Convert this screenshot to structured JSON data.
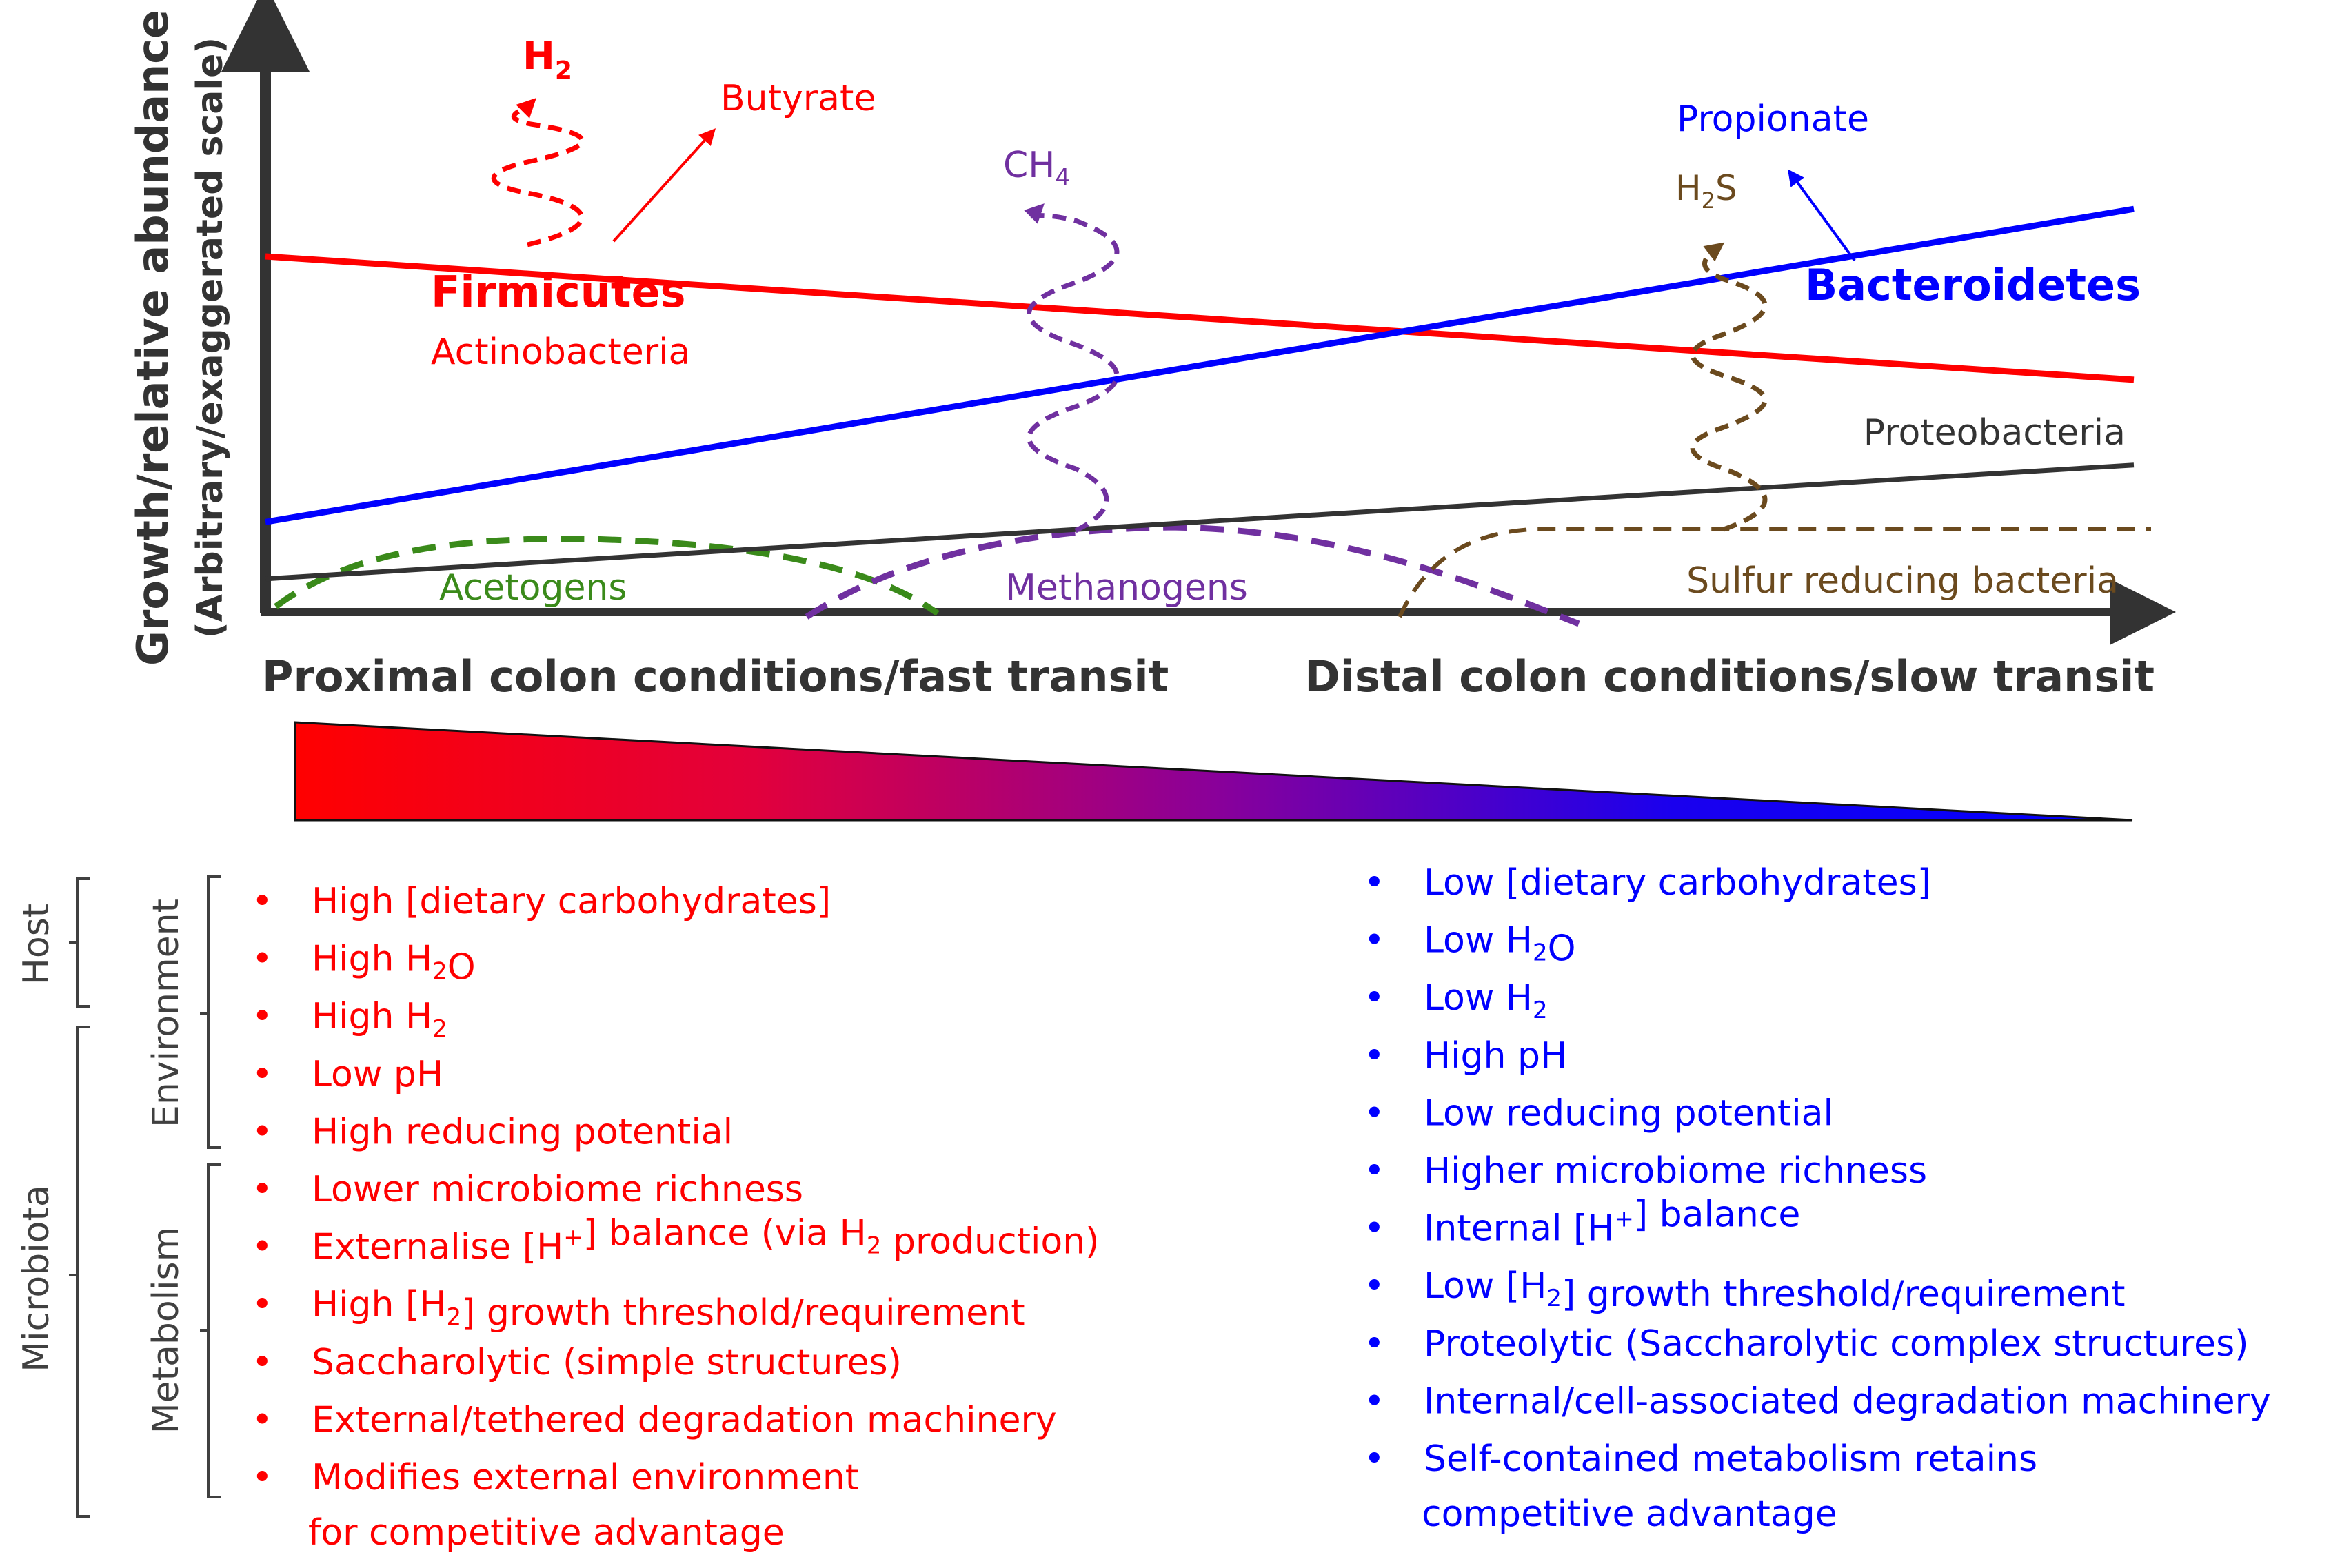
{
  "colors": {
    "red": "#ff0000",
    "blue": "#0000ff",
    "purple": "#7030a0",
    "green": "#3a8a1a",
    "brown": "#6b4a1e",
    "dark": "#333333",
    "axis": "#333333",
    "label_gray": "#404040"
  },
  "axes": {
    "y_label_line1": "Growth/relative abundance",
    "y_label_line2": "(Arbitrary/exaggerated scale)",
    "x_left_label": "Proximal colon conditions/fast transit",
    "x_right_label": "Distal colon conditions/slow transit"
  },
  "chart_data": {
    "type": "line",
    "title": "",
    "xlabel": "Proximal colon conditions/fast transit → Distal colon conditions/slow transit",
    "ylabel": "Growth/relative abundance (Arbitrary/exaggerated scale)",
    "x": [
      0,
      100
    ],
    "ylim": [
      0,
      100
    ],
    "series": [
      {
        "name": "Firmicutes",
        "values": [
          75,
          49
        ],
        "style": "solid",
        "color": "#ff0000"
      },
      {
        "name": "Bacteroidetes",
        "values": [
          19,
          85
        ],
        "style": "solid",
        "color": "#0000ff"
      },
      {
        "name": "Proteobacteria",
        "values": [
          7,
          31
        ],
        "style": "solid",
        "color": "#333333"
      }
    ],
    "curves": [
      {
        "name": "Acetogens",
        "style": "dashed",
        "color": "#3a8a1a"
      },
      {
        "name": "Methanogens",
        "style": "dashed",
        "color": "#7030a0"
      },
      {
        "name": "Sulfur reducing bacteria",
        "style": "dashed",
        "color": "#6b4a1e"
      }
    ],
    "gases": [
      {
        "name": "H2",
        "color": "#ff0000"
      },
      {
        "name": "CH4",
        "color": "#7030a0"
      },
      {
        "name": "H2S",
        "color": "#6b4a1e"
      }
    ]
  },
  "labels": {
    "h2": {
      "main": "H",
      "sub": "2"
    },
    "butyrate": "Butyrate",
    "ch4": {
      "main": "CH",
      "sub": "4"
    },
    "h2s": {
      "main": "H",
      "sub": "2",
      "tail": "S"
    },
    "propionate": "Propionate",
    "firmicutes": "Firmicutes",
    "actinobacteria": "Actinobacteria",
    "bacteroidetes": "Bacteroidetes",
    "proteobacteria": "Proteobacteria",
    "acetogens": "Acetogens",
    "methanogens": "Methanogens",
    "sulfur": "Sulfur reducing bacteria"
  },
  "brackets": {
    "host": "Host",
    "microbiota": "Microbiota",
    "environment": "Environment",
    "metabolism": "Metabolism"
  },
  "left_list": [
    [
      {
        "t": "High [dietary carbohydrates]"
      }
    ],
    [
      {
        "t": "High H"
      },
      {
        "t": "2",
        "s": "sub"
      },
      {
        "t": "O"
      }
    ],
    [
      {
        "t": "High H"
      },
      {
        "t": "2",
        "s": "sub"
      }
    ],
    [
      {
        "t": "Low pH"
      }
    ],
    [
      {
        "t": "High reducing potential"
      }
    ],
    [
      {
        "t": "Lower microbiome richness"
      }
    ],
    [
      {
        "t": "Externalise [H"
      },
      {
        "t": "+",
        "s": "sup"
      },
      {
        "t": "] balance (via H"
      },
      {
        "t": "2",
        "s": "sub"
      },
      {
        "t": " production)"
      }
    ],
    [
      {
        "t": "High [H"
      },
      {
        "t": "2",
        "s": "sub"
      },
      {
        "t": "] growth threshold/requirement"
      }
    ],
    [
      {
        "t": "Saccharolytic (simple structures)"
      }
    ],
    [
      {
        "t": "External/tethered degradation machinery"
      }
    ],
    [
      {
        "t": "Modifies external environment"
      }
    ]
  ],
  "left_list_continuation": "for competitive advantage",
  "right_list": [
    [
      {
        "t": "Low [dietary carbohydrates]"
      }
    ],
    [
      {
        "t": "Low H"
      },
      {
        "t": "2",
        "s": "sub"
      },
      {
        "t": "O"
      }
    ],
    [
      {
        "t": "Low H"
      },
      {
        "t": "2",
        "s": "sub"
      }
    ],
    [
      {
        "t": "High pH"
      }
    ],
    [
      {
        "t": "Low reducing potential"
      }
    ],
    [
      {
        "t": "Higher microbiome richness"
      }
    ],
    [
      {
        "t": "Internal [H"
      },
      {
        "t": "+",
        "s": "sup"
      },
      {
        "t": "] balance"
      }
    ],
    [
      {
        "t": "Low [H"
      },
      {
        "t": "2",
        "s": "sub"
      },
      {
        "t": "] growth threshold/requirement"
      }
    ],
    [
      {
        "t": "Proteolytic (Saccharolytic complex structures)"
      }
    ],
    [
      {
        "t": "Internal/cell-associated degradation machinery"
      }
    ],
    [
      {
        "t": "Self-contained metabolism retains"
      }
    ]
  ],
  "right_list_continuation": "competitive advantage",
  "bullet": "•"
}
